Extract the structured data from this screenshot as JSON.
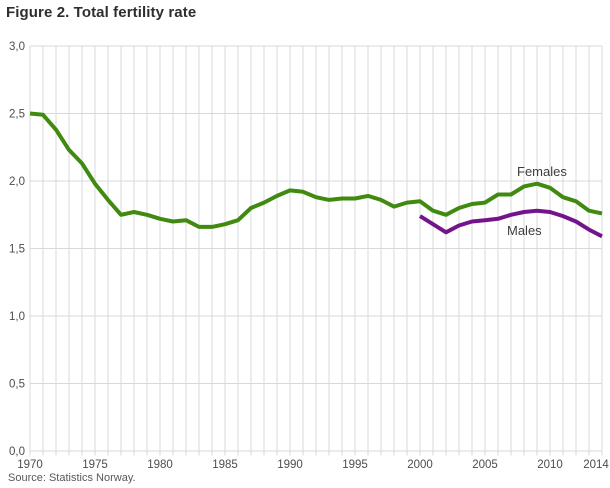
{
  "header": {
    "title": "Figure 2. Total fertility rate"
  },
  "footer": {
    "source": "Source: Statistics Norway."
  },
  "chart_data": {
    "type": "line",
    "title": "Figure 2. Total fertility rate",
    "xlabel": "",
    "ylabel": "",
    "ylim": [
      0,
      3
    ],
    "grid": true,
    "decimal_separator": ",",
    "x_start_year": 1970,
    "x_end_year": 2014,
    "x_tick_years": [
      1970,
      1975,
      1980,
      1985,
      1990,
      1995,
      2000,
      2005,
      2010,
      2014
    ],
    "x_tick_labels": [
      "1970",
      "1975",
      "1980",
      "1985",
      "1990",
      "1995",
      "2000",
      "2005",
      "2010",
      "2014"
    ],
    "y_tick_values": [
      3.0,
      2.5,
      2.0,
      1.5,
      1.0,
      0.5,
      0.0
    ],
    "y_tick_labels": [
      "3,0",
      "2,5",
      "2,0",
      "1,5",
      "1,0",
      "0,5",
      "0,0"
    ],
    "colors": {
      "females_line": "#3f8a0f",
      "males_line": "#73148c",
      "gridline": "#d9d9d9",
      "tick_text": "#4d4d4d"
    },
    "series": [
      {
        "name": "Females",
        "color": "#3f8a0f",
        "start_year": 1970,
        "values": [
          2.5,
          2.49,
          2.38,
          2.23,
          2.13,
          1.98,
          1.86,
          1.75,
          1.77,
          1.75,
          1.72,
          1.7,
          1.71,
          1.66,
          1.66,
          1.68,
          1.71,
          1.8,
          1.84,
          1.89,
          1.93,
          1.92,
          1.88,
          1.86,
          1.87,
          1.87,
          1.89,
          1.86,
          1.81,
          1.84,
          1.85,
          1.78,
          1.75,
          1.8,
          1.83,
          1.84,
          1.9,
          1.9,
          1.96,
          1.98,
          1.95,
          1.88,
          1.85,
          1.78,
          1.76
        ]
      },
      {
        "name": "Males",
        "color": "#73148c",
        "start_year": 2000,
        "values": [
          1.74,
          1.68,
          1.62,
          1.67,
          1.7,
          1.71,
          1.72,
          1.75,
          1.77,
          1.78,
          1.77,
          1.74,
          1.7,
          1.64,
          1.59
        ]
      }
    ]
  }
}
